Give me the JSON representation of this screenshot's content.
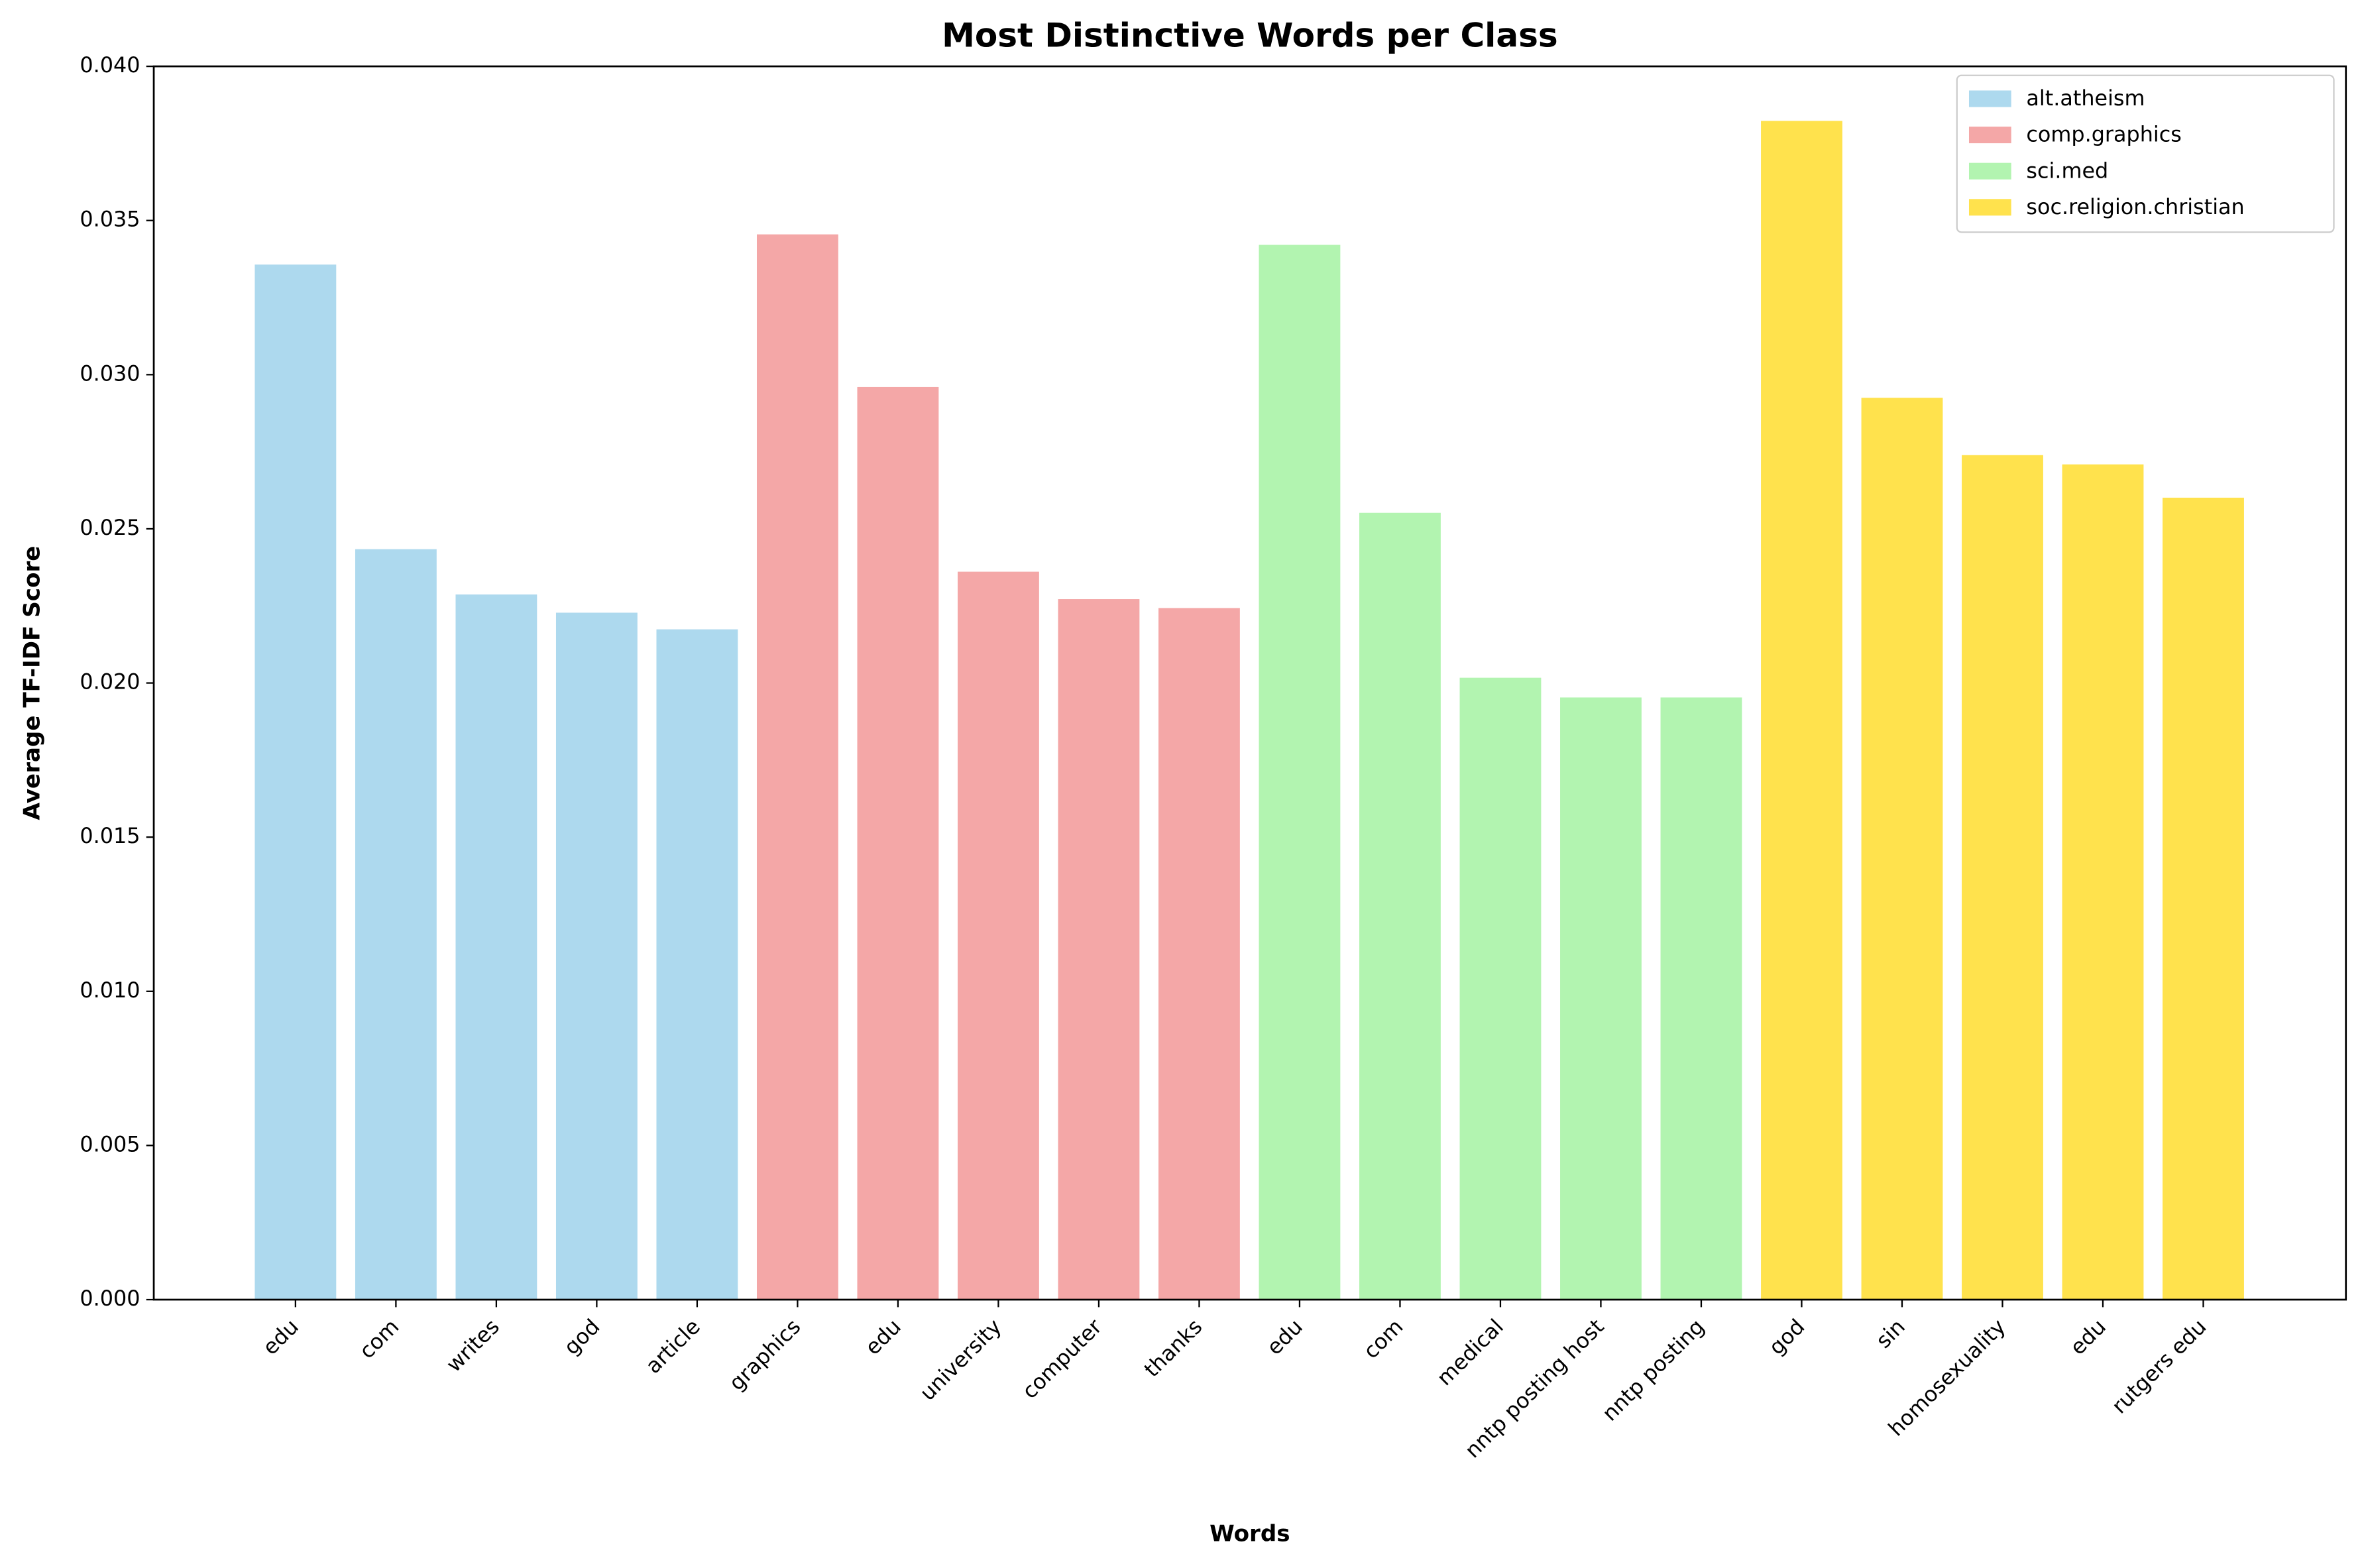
{
  "chart_data": {
    "type": "bar",
    "title": "Most Distinctive Words per Class",
    "x_label": "Words",
    "y_label": "Average TF-IDF Score",
    "categories": [
      "edu",
      "com",
      "writes",
      "god",
      "article",
      "graphics",
      "edu",
      "university",
      "computer",
      "thanks",
      "edu",
      "com",
      "medical",
      "nntp posting host",
      "nntp posting",
      "god",
      "sin",
      "homosexuality",
      "edu",
      "rutgers edu"
    ],
    "series": [
      {
        "name": "alt.atheism",
        "color": "#add9ee",
        "values": [
          0.03357,
          0.02434,
          0.02287,
          0.02228,
          0.02174,
          null,
          null,
          null,
          null,
          null,
          null,
          null,
          null,
          null,
          null,
          null,
          null,
          null,
          null,
          null
        ]
      },
      {
        "name": "comp.graphics",
        "color": "#f4a7a7",
        "values": [
          null,
          null,
          null,
          null,
          null,
          0.03455,
          0.0296,
          0.02361,
          0.02272,
          0.02243,
          null,
          null,
          null,
          null,
          null,
          null,
          null,
          null,
          null,
          null
        ]
      },
      {
        "name": "sci.med",
        "color": "#b2f4b0",
        "values": [
          null,
          null,
          null,
          null,
          null,
          null,
          null,
          null,
          null,
          null,
          0.03421,
          0.02552,
          0.02017,
          0.01953,
          0.01953,
          null,
          null,
          null,
          null,
          null
        ]
      },
      {
        "name": "soc.religion.christian",
        "color": "#ffe24d",
        "values": [
          null,
          null,
          null,
          null,
          null,
          null,
          null,
          null,
          null,
          null,
          null,
          null,
          null,
          null,
          null,
          0.03823,
          0.02925,
          0.02739,
          0.02709,
          0.02601
        ]
      }
    ],
    "ylim": [
      0,
      0.04
    ],
    "yticks": [
      {
        "value": 0,
        "label": "0.000"
      },
      {
        "value": 0.005,
        "label": "0.005"
      },
      {
        "value": 0.01,
        "label": "0.010"
      },
      {
        "value": 0.015,
        "label": "0.015"
      },
      {
        "value": 0.02,
        "label": "0.020"
      },
      {
        "value": 0.025,
        "label": "0.025"
      },
      {
        "value": 0.03,
        "label": "0.030"
      },
      {
        "value": 0.035,
        "label": "0.035"
      },
      {
        "value": 0.04,
        "label": "0.040"
      }
    ],
    "legend": "upper right",
    "grid": false
  }
}
